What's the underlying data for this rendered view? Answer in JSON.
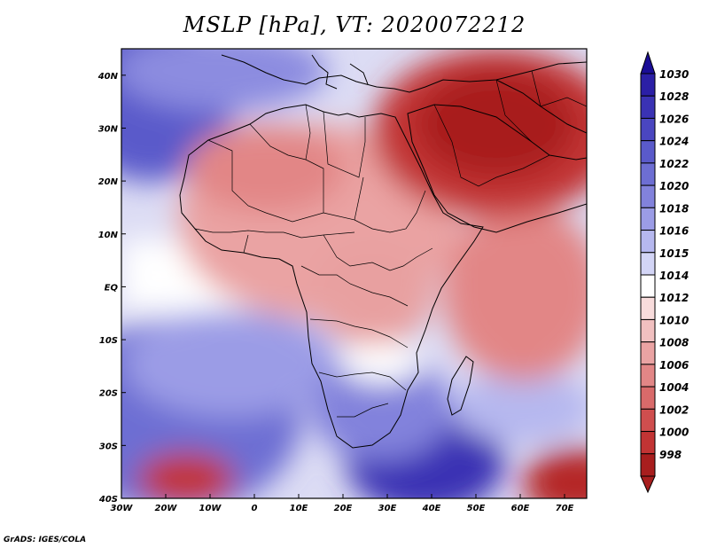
{
  "title": "MSLP [hPa], VT: 2020072212",
  "credit": "GrADS: IGES/COLA",
  "map": {
    "lon_range": [
      -30,
      75
    ],
    "lat_range": [
      -40,
      45
    ],
    "lon_ticks": [
      {
        "value": -30,
        "label": "30W"
      },
      {
        "value": -20,
        "label": "20W"
      },
      {
        "value": -10,
        "label": "10W"
      },
      {
        "value": 0,
        "label": "0"
      },
      {
        "value": 10,
        "label": "10E"
      },
      {
        "value": 20,
        "label": "20E"
      },
      {
        "value": 30,
        "label": "30E"
      },
      {
        "value": 40,
        "label": "40E"
      },
      {
        "value": 50,
        "label": "50E"
      },
      {
        "value": 60,
        "label": "60E"
      },
      {
        "value": 70,
        "label": "70E"
      }
    ],
    "lat_ticks": [
      {
        "value": 40,
        "label": "40N"
      },
      {
        "value": 30,
        "label": "30N"
      },
      {
        "value": 20,
        "label": "20N"
      },
      {
        "value": 10,
        "label": "10N"
      },
      {
        "value": 0,
        "label": "EQ"
      },
      {
        "value": -10,
        "label": "10S"
      },
      {
        "value": -20,
        "label": "20S"
      },
      {
        "value": -30,
        "label": "30S"
      },
      {
        "value": -40,
        "label": "40S"
      }
    ]
  },
  "colorbar": {
    "levels": [
      {
        "label": "1030",
        "color": "#2b1fa6"
      },
      {
        "label": "1028",
        "color": "#3a32b4"
      },
      {
        "label": "1026",
        "color": "#4a46c0"
      },
      {
        "label": "1024",
        "color": "#5a5aca"
      },
      {
        "label": "1022",
        "color": "#6d6ed3"
      },
      {
        "label": "1020",
        "color": "#8282dc"
      },
      {
        "label": "1018",
        "color": "#9b9ce6"
      },
      {
        "label": "1016",
        "color": "#b6b8ef"
      },
      {
        "label": "1015",
        "color": "#d3d5f6"
      },
      {
        "label": "1014",
        "color": "#ffffff"
      },
      {
        "label": "1012",
        "color": "#f8dcdc"
      },
      {
        "label": "1010",
        "color": "#f1c0c0"
      },
      {
        "label": "1008",
        "color": "#eaa3a3"
      },
      {
        "label": "1006",
        "color": "#e28686"
      },
      {
        "label": "1004",
        "color": "#d96a6a"
      },
      {
        "label": "1002",
        "color": "#cf4e4e"
      },
      {
        "label": "1000",
        "color": "#c23434"
      },
      {
        "label": "998",
        "color": "#a81e1e"
      }
    ],
    "top_color": "#1a0d96",
    "bottom_color": "#a81e1e"
  }
}
